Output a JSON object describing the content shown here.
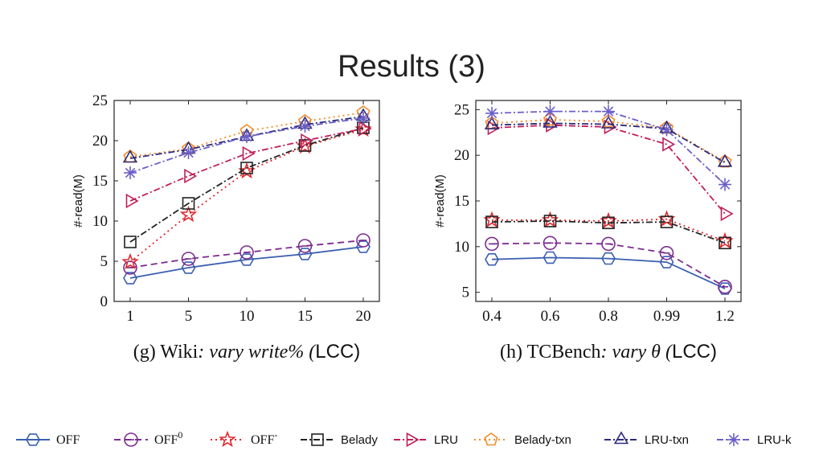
{
  "slide": {
    "title": "Results (3)"
  },
  "chart_data": [
    {
      "type": "line",
      "panel": "left",
      "caption_prefix": "(g) Wiki",
      "caption_italic": ": vary write% (",
      "caption_suffix": "LCC)",
      "ylabel": "#-read(M)",
      "x_ticks": [
        "1",
        "5",
        "10",
        "15",
        "20"
      ],
      "y_ticks": [
        "0",
        "5",
        "10",
        "15",
        "20",
        "25"
      ],
      "ylim": [
        0,
        25
      ],
      "series": [
        {
          "name": "OFF",
          "color": "#3a5fb0",
          "dash": "solid",
          "marker": "hexagon",
          "values": [
            2.9,
            4.2,
            5.2,
            5.9,
            6.8
          ]
        },
        {
          "name": "OFF0",
          "color": "#7b2d8e",
          "dash": "dashed",
          "marker": "circle-dash",
          "values": [
            4.2,
            5.3,
            6.1,
            6.9,
            7.6
          ]
        },
        {
          "name": "OFF-",
          "color": "#e0262d",
          "dash": "dotted",
          "marker": "star",
          "values": [
            4.9,
            10.8,
            16.2,
            19.3,
            21.4
          ]
        },
        {
          "name": "Belady",
          "color": "#222222",
          "dash": "dashdot",
          "marker": "square",
          "values": [
            7.4,
            12.2,
            16.6,
            19.4,
            21.6
          ]
        },
        {
          "name": "LRU",
          "color": "#c21e5a",
          "dash": "dashdot",
          "marker": "triangle-right",
          "values": [
            12.5,
            15.6,
            18.4,
            20.0,
            21.5
          ]
        },
        {
          "name": "Belady-txn",
          "color": "#f08c2a",
          "dash": "dotted",
          "marker": "pentagon",
          "values": [
            18.0,
            19.0,
            21.2,
            22.4,
            23.5
          ]
        },
        {
          "name": "LRU-txn",
          "color": "#2d2a7a",
          "dash": "dashdot",
          "marker": "triangle-up",
          "values": [
            17.8,
            18.9,
            20.5,
            22.0,
            23.0
          ]
        },
        {
          "name": "LRU-k",
          "color": "#6a5fc8",
          "dash": "dashdot",
          "marker": "asterisk",
          "values": [
            16.0,
            18.5,
            20.5,
            21.8,
            22.8
          ]
        }
      ]
    },
    {
      "type": "line",
      "panel": "right",
      "caption_prefix": "(h) TCBench",
      "caption_italic": ": vary θ (",
      "caption_suffix": "LCC)",
      "ylabel": "#-read(M)",
      "x_ticks": [
        "0.4",
        "0.6",
        "0.8",
        "0.99",
        "1.2"
      ],
      "y_ticks": [
        "5",
        "10",
        "15",
        "20",
        "25"
      ],
      "ylim": [
        4,
        26
      ],
      "series": [
        {
          "name": "OFF",
          "color": "#3a5fb0",
          "dash": "solid",
          "marker": "hexagon",
          "values": [
            8.6,
            8.8,
            8.7,
            8.3,
            5.4
          ]
        },
        {
          "name": "OFF0",
          "color": "#7b2d8e",
          "dash": "dashed",
          "marker": "circle-dash",
          "values": [
            10.3,
            10.4,
            10.3,
            9.3,
            5.6
          ]
        },
        {
          "name": "OFF-",
          "color": "#e0262d",
          "dash": "dotted",
          "marker": "star",
          "values": [
            12.9,
            12.9,
            12.8,
            13.0,
            10.6
          ]
        },
        {
          "name": "Belady",
          "color": "#222222",
          "dash": "dashdot",
          "marker": "square",
          "values": [
            12.7,
            12.8,
            12.6,
            12.7,
            10.4
          ]
        },
        {
          "name": "LRU",
          "color": "#c21e5a",
          "dash": "dashdot",
          "marker": "triangle-right",
          "values": [
            23.0,
            23.3,
            23.1,
            21.2,
            13.6
          ]
        },
        {
          "name": "Belady-txn",
          "color": "#f08c2a",
          "dash": "dotted",
          "marker": "pentagon",
          "values": [
            23.5,
            23.9,
            23.7,
            23.0,
            19.3
          ]
        },
        {
          "name": "LRU-txn",
          "color": "#2d2a7a",
          "dash": "dashdot",
          "marker": "triangle-up",
          "values": [
            23.3,
            23.5,
            23.4,
            22.9,
            19.2
          ]
        },
        {
          "name": "LRU-k",
          "color": "#6a5fc8",
          "dash": "dashdot",
          "marker": "asterisk",
          "values": [
            24.6,
            24.8,
            24.8,
            22.8,
            16.8
          ]
        }
      ]
    }
  ],
  "legend": [
    {
      "label": "OFF",
      "sup": "",
      "serif": true
    },
    {
      "label": "OFF",
      "sup": "0",
      "serif": true
    },
    {
      "label": "OFF",
      "sup": "-",
      "serif": true
    },
    {
      "label": "Belady",
      "sup": "",
      "serif": false
    },
    {
      "label": "LRU",
      "sup": "",
      "serif": false
    },
    {
      "label": "Belady-txn",
      "sup": "",
      "serif": false
    },
    {
      "label": "LRU-txn",
      "sup": "",
      "serif": false
    },
    {
      "label": "LRU-k",
      "sup": "",
      "serif": false
    }
  ]
}
